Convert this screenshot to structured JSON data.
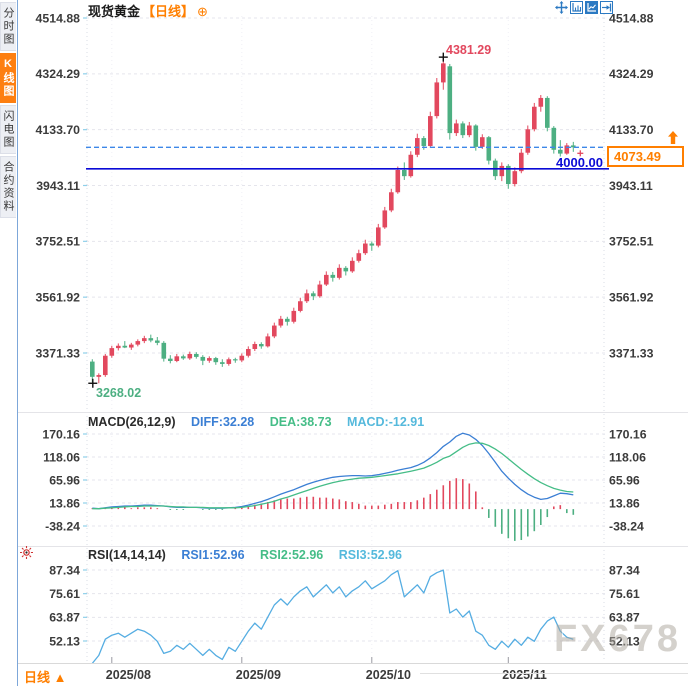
{
  "sidebar": {
    "tabs": [
      {
        "label": "分时图",
        "name": "minute-chart",
        "active": false
      },
      {
        "label": "K线图",
        "name": "kline-chart",
        "active": true
      },
      {
        "label": "闪电图",
        "name": "lightning-chart",
        "active": false
      },
      {
        "label": "合约资料",
        "name": "contract-info",
        "active": false
      }
    ]
  },
  "header": {
    "symbol": "现货黄金",
    "period": "【日线】",
    "add_icon": "⊕"
  },
  "toolbar": {
    "icons": [
      "pan-icon",
      "axis-chart-icon",
      "bar-chart-icon",
      "collapse-right-icon"
    ]
  },
  "footer": {
    "period_label": "日线",
    "arrow": "▲",
    "x_labels": [
      "2025/08",
      "2025/09",
      "2025/10",
      "2025/11"
    ]
  },
  "watermark": "FX678",
  "colors": {
    "up": "#e2485e",
    "down": "#4daf82",
    "diff": "#3b7fd4",
    "dea": "#45bd87",
    "rsi": "#55ade2",
    "accent": "#ff7f00",
    "support": "#0b0bd6",
    "dashed": "#3d87e8"
  },
  "chart_data": [
    {
      "type": "candlestick",
      "title": "现货黄金 日线",
      "y_ticks": [
        4514.88,
        4324.29,
        4133.7,
        3943.11,
        3752.51,
        3561.92,
        3371.33
      ],
      "x_ticks": [
        "2025/08",
        "2025/09",
        "2025/10",
        "2025/11"
      ],
      "x_tick_indices": [
        3,
        23,
        43,
        64
      ],
      "ylim": [
        3260,
        4560
      ],
      "up_color": "#e2485e",
      "down_color": "#4daf82",
      "annotations": {
        "high": "4381.29",
        "low": "3268.02",
        "support_line": "4000.00",
        "last_price": "4073.49"
      },
      "high_value": 4381.29,
      "low_value": 3268.02,
      "support_value": 4000.0,
      "last_value": 4073.49,
      "ohlc": [
        [
          3342,
          3350,
          3272,
          3290
        ],
        [
          3290,
          3302,
          3268.02,
          3296
        ],
        [
          3296,
          3368,
          3290,
          3362
        ],
        [
          3362,
          3396,
          3355,
          3388
        ],
        [
          3388,
          3404,
          3380,
          3396
        ],
        [
          3396,
          3412,
          3388,
          3390
        ],
        [
          3390,
          3406,
          3382,
          3400
        ],
        [
          3400,
          3418,
          3394,
          3412
        ],
        [
          3412,
          3430,
          3405,
          3422
        ],
        [
          3422,
          3434,
          3408,
          3414
        ],
        [
          3414,
          3426,
          3398,
          3406
        ],
        [
          3406,
          3412,
          3342,
          3352
        ],
        [
          3352,
          3364,
          3336,
          3344
        ],
        [
          3344,
          3368,
          3340,
          3360
        ],
        [
          3360,
          3366,
          3348,
          3353
        ],
        [
          3353,
          3376,
          3348,
          3368
        ],
        [
          3368,
          3374,
          3352,
          3358
        ],
        [
          3358,
          3364,
          3330,
          3345
        ],
        [
          3345,
          3360,
          3338,
          3354
        ],
        [
          3354,
          3358,
          3331,
          3340
        ],
        [
          3340,
          3350,
          3324,
          3334
        ],
        [
          3334,
          3356,
          3328,
          3350
        ],
        [
          3350,
          3355,
          3338,
          3346
        ],
        [
          3346,
          3370,
          3340,
          3362
        ],
        [
          3362,
          3394,
          3356,
          3385
        ],
        [
          3385,
          3410,
          3378,
          3402
        ],
        [
          3402,
          3408,
          3386,
          3394
        ],
        [
          3394,
          3438,
          3390,
          3428
        ],
        [
          3428,
          3475,
          3422,
          3465
        ],
        [
          3465,
          3498,
          3458,
          3488
        ],
        [
          3488,
          3495,
          3465,
          3478
        ],
        [
          3478,
          3526,
          3472,
          3515
        ],
        [
          3515,
          3560,
          3510,
          3548
        ],
        [
          3548,
          3588,
          3542,
          3575
        ],
        [
          3575,
          3582,
          3552,
          3565
        ],
        [
          3565,
          3618,
          3560,
          3605
        ],
        [
          3605,
          3650,
          3600,
          3638
        ],
        [
          3638,
          3648,
          3615,
          3628
        ],
        [
          3628,
          3674,
          3622,
          3662
        ],
        [
          3662,
          3668,
          3636,
          3650
        ],
        [
          3650,
          3698,
          3645,
          3686
        ],
        [
          3686,
          3724,
          3680,
          3712
        ],
        [
          3712,
          3758,
          3706,
          3745
        ],
        [
          3745,
          3752,
          3720,
          3738
        ],
        [
          3738,
          3812,
          3732,
          3800
        ],
        [
          3800,
          3870,
          3795,
          3858
        ],
        [
          3858,
          3932,
          3852,
          3920
        ],
        [
          3920,
          4008,
          3915,
          3996
        ],
        [
          3996,
          4022,
          3962,
          3975
        ],
        [
          3975,
          4060,
          3970,
          4048
        ],
        [
          4048,
          4120,
          4040,
          4105
        ],
        [
          4105,
          4112,
          4065,
          4078
        ],
        [
          4078,
          4195,
          4072,
          4180
        ],
        [
          4180,
          4310,
          4172,
          4295
        ],
        [
          4295,
          4381.29,
          4270,
          4360
        ],
        [
          4350,
          4358,
          4100,
          4122
        ],
        [
          4122,
          4168,
          4112,
          4155
        ],
        [
          4155,
          4162,
          4105,
          4115
        ],
        [
          4115,
          4160,
          4108,
          4148
        ],
        [
          4148,
          4152,
          4062,
          4075
        ],
        [
          4075,
          4118,
          4068,
          4108
        ],
        [
          4108,
          4112,
          4015,
          4028
        ],
        [
          4028,
          4035,
          3962,
          3975
        ],
        [
          3975,
          4022,
          3958,
          4010
        ],
        [
          4010,
          4016,
          3932,
          3948
        ],
        [
          3948,
          4005,
          3940,
          3992
        ],
        [
          3992,
          4068,
          3985,
          4055
        ],
        [
          4055,
          4148,
          4048,
          4135
        ],
        [
          4135,
          4225,
          4128,
          4212
        ],
        [
          4212,
          4252,
          4195,
          4242
        ],
        [
          4242,
          4248,
          4128,
          4140
        ],
        [
          4140,
          4146,
          4052,
          4065
        ],
        [
          4065,
          4098,
          4042,
          4052
        ],
        [
          4052,
          4088,
          4048,
          4080
        ],
        [
          4080,
          4092,
          4058,
          4073.49
        ]
      ]
    },
    {
      "type": "macd_panel",
      "label": "MACD(26,12,9)",
      "diff_label": "DIFF:32.28",
      "dea_label": "DEA:38.73",
      "macd_label": "MACD:-12.91",
      "y_ticks": [
        170.16,
        118.06,
        65.96,
        13.86,
        -38.24
      ],
      "diff": [
        2,
        1,
        3,
        5,
        6,
        7,
        7,
        8,
        9,
        9,
        8,
        7,
        5,
        4,
        4,
        4,
        4,
        3,
        2,
        2,
        2,
        3,
        4,
        6,
        9,
        13,
        17,
        22,
        28,
        34,
        39,
        44,
        50,
        56,
        61,
        65,
        69,
        72,
        74,
        75,
        76,
        76,
        75,
        76,
        78,
        81,
        84,
        88,
        91,
        94,
        99,
        106,
        116,
        128,
        142,
        152,
        165,
        172,
        168,
        158,
        144,
        126,
        106,
        86,
        70,
        56,
        44,
        34,
        27,
        22,
        24,
        30,
        36,
        35,
        32.28
      ],
      "dea": [
        1,
        1,
        2,
        3,
        4,
        5,
        6,
        6,
        7,
        7,
        7,
        7,
        6,
        5,
        5,
        4,
        4,
        4,
        3,
        3,
        3,
        3,
        3,
        4,
        6,
        8,
        11,
        14,
        18,
        23,
        27,
        32,
        37,
        42,
        47,
        52,
        56,
        60,
        63,
        66,
        68,
        70,
        71,
        72,
        74,
        76,
        78,
        80,
        83,
        86,
        89,
        93,
        99,
        106,
        115,
        120,
        130,
        140,
        147,
        150,
        149,
        144,
        136,
        126,
        114,
        102,
        90,
        79,
        69,
        60,
        53,
        47,
        43,
        40,
        38.73
      ],
      "hist": [
        2,
        0,
        2,
        4,
        4,
        4,
        2,
        4,
        4,
        4,
        2,
        0,
        -2,
        -2,
        -2,
        0,
        0,
        -2,
        -2,
        -2,
        -2,
        0,
        2,
        4,
        6,
        10,
        12,
        16,
        20,
        22,
        24,
        24,
        26,
        28,
        28,
        26,
        26,
        24,
        22,
        18,
        16,
        12,
        8,
        8,
        8,
        10,
        12,
        16,
        16,
        16,
        20,
        26,
        34,
        44,
        54,
        64,
        70,
        68,
        58,
        40,
        4,
        -20,
        -40,
        -56,
        -66,
        -72,
        -70,
        -62,
        -50,
        -36,
        -18,
        6,
        9,
        -9,
        -12.91
      ]
    },
    {
      "type": "rsi_panel",
      "label": "RSI(14,14,14)",
      "rsi1_label": "RSI1:52.96",
      "rsi2_label": "RSI2:52.96",
      "rsi3_label": "RSI3:52.96",
      "y_ticks": [
        87.34,
        75.61,
        63.87,
        52.13
      ],
      "values": [
        41,
        45,
        53,
        55,
        56,
        54,
        56,
        58,
        57,
        55,
        52,
        46,
        47,
        50,
        48,
        51,
        48,
        45,
        48,
        45,
        43,
        49,
        47,
        52,
        57,
        61,
        58,
        64,
        70,
        73,
        70,
        74,
        77,
        79,
        74,
        77,
        80,
        76,
        79,
        74,
        77,
        79,
        82,
        78,
        80,
        82,
        85,
        87,
        74,
        77,
        80,
        76,
        84,
        86,
        87.3,
        66,
        68,
        64,
        67,
        57,
        55,
        50,
        48,
        52,
        49,
        53,
        50,
        54,
        52,
        58,
        62,
        64,
        57,
        54,
        52.96
      ]
    }
  ]
}
